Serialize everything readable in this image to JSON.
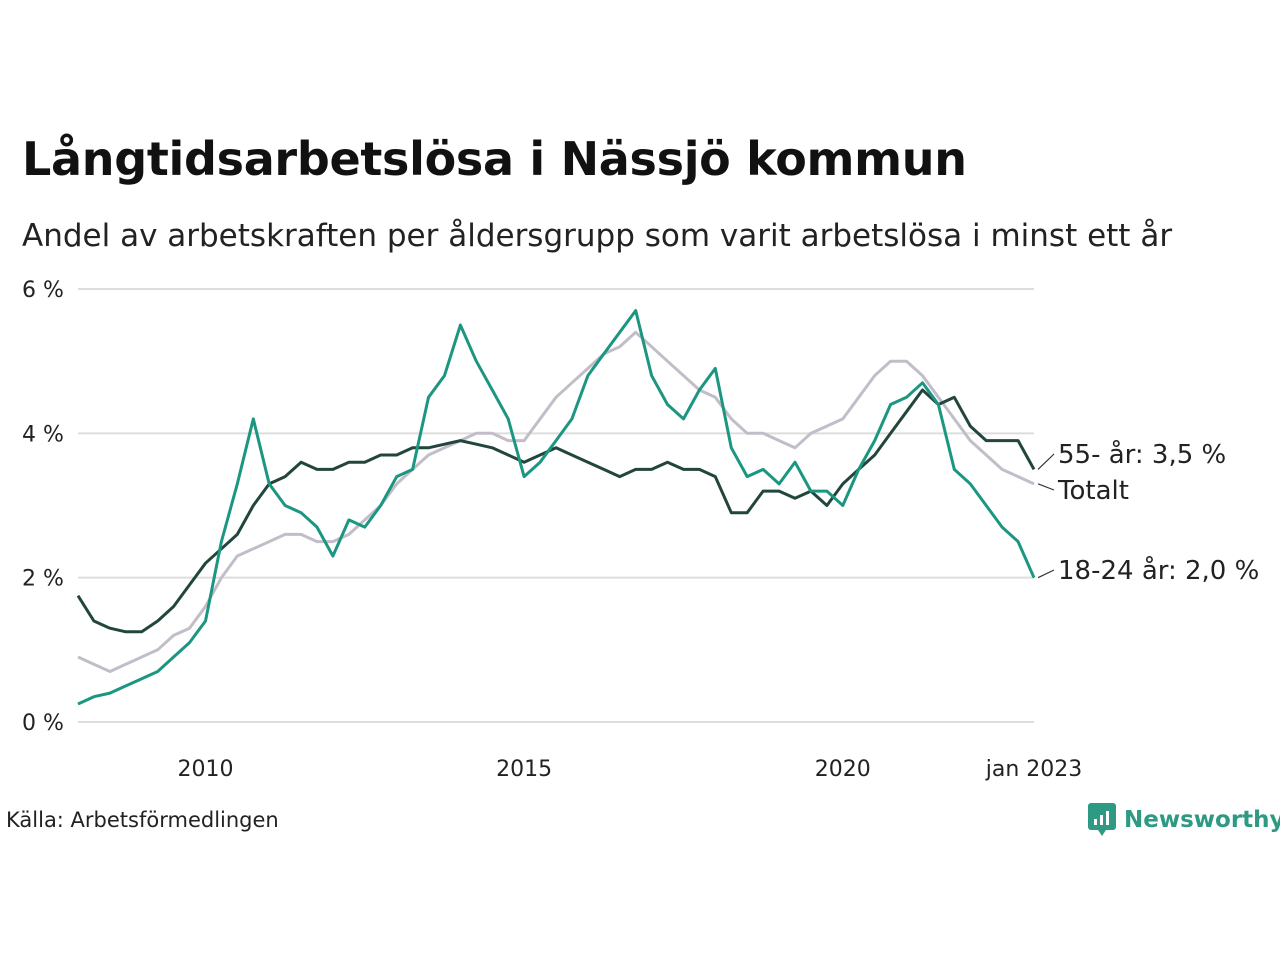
{
  "title": "Långtidsarbetslösa i Nässjö kommun",
  "subtitle": "Andel av arbetskraften per åldersgrupp som varit arbetslösa i minst ett år",
  "source": "Källa: Arbetsförmedlingen",
  "brand": "Newsworthy",
  "colors": {
    "total": "#c2bdc9",
    "age_55": "#22463d",
    "age_18_24": "#1b9681",
    "grid": "#dddddd"
  },
  "chart_data": {
    "type": "line",
    "title": "Långtidsarbetslösa i Nässjö kommun",
    "subtitle": "Andel av arbetskraften per åldersgrupp som varit arbetslösa i minst ett år",
    "xlabel": "",
    "ylabel": "",
    "ylim": [
      0,
      6
    ],
    "xlim": [
      "2008-01",
      "2023-01"
    ],
    "y_ticks": [
      "0 %",
      "2 %",
      "4 %",
      "6 %"
    ],
    "x_ticks": [
      "2010",
      "2015",
      "2020",
      "jan 2023"
    ],
    "grid": true,
    "series": [
      {
        "name": "Totalt",
        "label": "Totalt",
        "color": "#c2bdc9",
        "points": [
          [
            "2008-01",
            0.9
          ],
          [
            "2008-04",
            0.8
          ],
          [
            "2008-07",
            0.7
          ],
          [
            "2008-10",
            0.8
          ],
          [
            "2009-01",
            0.9
          ],
          [
            "2009-04",
            1.0
          ],
          [
            "2009-07",
            1.2
          ],
          [
            "2009-10",
            1.3
          ],
          [
            "2010-01",
            1.6
          ],
          [
            "2010-04",
            2.0
          ],
          [
            "2010-07",
            2.3
          ],
          [
            "2010-10",
            2.4
          ],
          [
            "2011-01",
            2.5
          ],
          [
            "2011-04",
            2.6
          ],
          [
            "2011-07",
            2.6
          ],
          [
            "2011-10",
            2.5
          ],
          [
            "2012-01",
            2.5
          ],
          [
            "2012-04",
            2.6
          ],
          [
            "2012-07",
            2.8
          ],
          [
            "2012-10",
            3.0
          ],
          [
            "2013-01",
            3.3
          ],
          [
            "2013-04",
            3.5
          ],
          [
            "2013-07",
            3.7
          ],
          [
            "2013-10",
            3.8
          ],
          [
            "2014-01",
            3.9
          ],
          [
            "2014-04",
            4.0
          ],
          [
            "2014-07",
            4.0
          ],
          [
            "2014-10",
            3.9
          ],
          [
            "2015-01",
            3.9
          ],
          [
            "2015-04",
            4.2
          ],
          [
            "2015-07",
            4.5
          ],
          [
            "2015-10",
            4.7
          ],
          [
            "2016-01",
            4.9
          ],
          [
            "2016-04",
            5.1
          ],
          [
            "2016-07",
            5.2
          ],
          [
            "2016-10",
            5.4
          ],
          [
            "2017-01",
            5.2
          ],
          [
            "2017-04",
            5.0
          ],
          [
            "2017-07",
            4.8
          ],
          [
            "2017-10",
            4.6
          ],
          [
            "2018-01",
            4.5
          ],
          [
            "2018-04",
            4.2
          ],
          [
            "2018-07",
            4.0
          ],
          [
            "2018-10",
            4.0
          ],
          [
            "2019-01",
            3.9
          ],
          [
            "2019-04",
            3.8
          ],
          [
            "2019-07",
            4.0
          ],
          [
            "2019-10",
            4.1
          ],
          [
            "2020-01",
            4.2
          ],
          [
            "2020-04",
            4.5
          ],
          [
            "2020-07",
            4.8
          ],
          [
            "2020-10",
            5.0
          ],
          [
            "2021-01",
            5.0
          ],
          [
            "2021-04",
            4.8
          ],
          [
            "2021-07",
            4.5
          ],
          [
            "2021-10",
            4.2
          ],
          [
            "2022-01",
            3.9
          ],
          [
            "2022-04",
            3.7
          ],
          [
            "2022-07",
            3.5
          ],
          [
            "2022-10",
            3.4
          ],
          [
            "2023-01",
            3.3
          ]
        ]
      },
      {
        "name": "55- år",
        "label": "55- år: 3,5 %",
        "color": "#22463d",
        "points": [
          [
            "2008-01",
            1.75
          ],
          [
            "2008-04",
            1.4
          ],
          [
            "2008-07",
            1.3
          ],
          [
            "2008-10",
            1.25
          ],
          [
            "2009-01",
            1.25
          ],
          [
            "2009-04",
            1.4
          ],
          [
            "2009-07",
            1.6
          ],
          [
            "2009-10",
            1.9
          ],
          [
            "2010-01",
            2.2
          ],
          [
            "2010-04",
            2.4
          ],
          [
            "2010-07",
            2.6
          ],
          [
            "2010-10",
            3.0
          ],
          [
            "2011-01",
            3.3
          ],
          [
            "2011-04",
            3.4
          ],
          [
            "2011-07",
            3.6
          ],
          [
            "2011-10",
            3.5
          ],
          [
            "2012-01",
            3.5
          ],
          [
            "2012-04",
            3.6
          ],
          [
            "2012-07",
            3.6
          ],
          [
            "2012-10",
            3.7
          ],
          [
            "2013-01",
            3.7
          ],
          [
            "2013-04",
            3.8
          ],
          [
            "2013-07",
            3.8
          ],
          [
            "2013-10",
            3.85
          ],
          [
            "2014-01",
            3.9
          ],
          [
            "2014-04",
            3.85
          ],
          [
            "2014-07",
            3.8
          ],
          [
            "2014-10",
            3.7
          ],
          [
            "2015-01",
            3.6
          ],
          [
            "2015-04",
            3.7
          ],
          [
            "2015-07",
            3.8
          ],
          [
            "2015-10",
            3.7
          ],
          [
            "2016-01",
            3.6
          ],
          [
            "2016-04",
            3.5
          ],
          [
            "2016-07",
            3.4
          ],
          [
            "2016-10",
            3.5
          ],
          [
            "2017-01",
            3.5
          ],
          [
            "2017-04",
            3.6
          ],
          [
            "2017-07",
            3.5
          ],
          [
            "2017-10",
            3.5
          ],
          [
            "2018-01",
            3.4
          ],
          [
            "2018-04",
            2.9
          ],
          [
            "2018-07",
            2.9
          ],
          [
            "2018-10",
            3.2
          ],
          [
            "2019-01",
            3.2
          ],
          [
            "2019-04",
            3.1
          ],
          [
            "2019-07",
            3.2
          ],
          [
            "2019-10",
            3.0
          ],
          [
            "2020-01",
            3.3
          ],
          [
            "2020-04",
            3.5
          ],
          [
            "2020-07",
            3.7
          ],
          [
            "2020-10",
            4.0
          ],
          [
            "2021-01",
            4.3
          ],
          [
            "2021-04",
            4.6
          ],
          [
            "2021-07",
            4.4
          ],
          [
            "2021-10",
            4.5
          ],
          [
            "2022-01",
            4.1
          ],
          [
            "2022-04",
            3.9
          ],
          [
            "2022-07",
            3.9
          ],
          [
            "2022-10",
            3.9
          ],
          [
            "2023-01",
            3.5
          ]
        ]
      },
      {
        "name": "18-24 år",
        "label": "18-24 år: 2,0 %",
        "color": "#1b9681",
        "points": [
          [
            "2008-01",
            0.25
          ],
          [
            "2008-04",
            0.35
          ],
          [
            "2008-07",
            0.4
          ],
          [
            "2008-10",
            0.5
          ],
          [
            "2009-01",
            0.6
          ],
          [
            "2009-04",
            0.7
          ],
          [
            "2009-07",
            0.9
          ],
          [
            "2009-10",
            1.1
          ],
          [
            "2010-01",
            1.4
          ],
          [
            "2010-04",
            2.5
          ],
          [
            "2010-07",
            3.3
          ],
          [
            "2010-10",
            4.2
          ],
          [
            "2011-01",
            3.3
          ],
          [
            "2011-04",
            3.0
          ],
          [
            "2011-07",
            2.9
          ],
          [
            "2011-10",
            2.7
          ],
          [
            "2012-01",
            2.3
          ],
          [
            "2012-04",
            2.8
          ],
          [
            "2012-07",
            2.7
          ],
          [
            "2012-10",
            3.0
          ],
          [
            "2013-01",
            3.4
          ],
          [
            "2013-04",
            3.5
          ],
          [
            "2013-07",
            4.5
          ],
          [
            "2013-10",
            4.8
          ],
          [
            "2014-01",
            5.5
          ],
          [
            "2014-04",
            5.0
          ],
          [
            "2014-07",
            4.6
          ],
          [
            "2014-10",
            4.2
          ],
          [
            "2015-01",
            3.4
          ],
          [
            "2015-04",
            3.6
          ],
          [
            "2015-07",
            3.9
          ],
          [
            "2015-10",
            4.2
          ],
          [
            "2016-01",
            4.8
          ],
          [
            "2016-04",
            5.1
          ],
          [
            "2016-07",
            5.4
          ],
          [
            "2016-10",
            5.7
          ],
          [
            "2017-01",
            4.8
          ],
          [
            "2017-04",
            4.4
          ],
          [
            "2017-07",
            4.2
          ],
          [
            "2017-10",
            4.6
          ],
          [
            "2018-01",
            4.9
          ],
          [
            "2018-04",
            3.8
          ],
          [
            "2018-07",
            3.4
          ],
          [
            "2018-10",
            3.5
          ],
          [
            "2019-01",
            3.3
          ],
          [
            "2019-04",
            3.6
          ],
          [
            "2019-07",
            3.2
          ],
          [
            "2019-10",
            3.2
          ],
          [
            "2020-01",
            3.0
          ],
          [
            "2020-04",
            3.5
          ],
          [
            "2020-07",
            3.9
          ],
          [
            "2020-10",
            4.4
          ],
          [
            "2021-01",
            4.5
          ],
          [
            "2021-04",
            4.7
          ],
          [
            "2021-07",
            4.4
          ],
          [
            "2021-10",
            3.5
          ],
          [
            "2022-01",
            3.3
          ],
          [
            "2022-04",
            3.0
          ],
          [
            "2022-07",
            2.7
          ],
          [
            "2022-10",
            2.5
          ],
          [
            "2023-01",
            2.0
          ]
        ]
      }
    ]
  }
}
